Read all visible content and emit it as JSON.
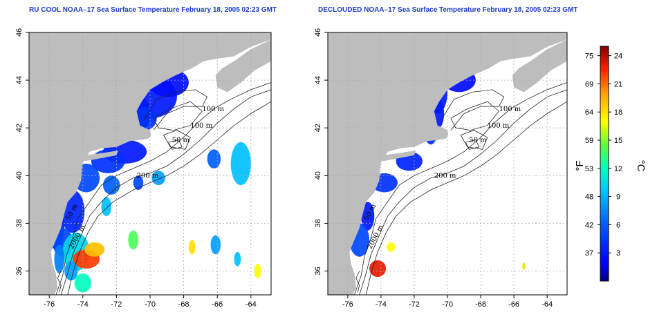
{
  "panels": [
    {
      "title": "RU COOL NOAA–17 Sea Surface Temperature February 18, 2005 02:23 GMT",
      "mode": "full"
    },
    {
      "title": "DECLOUDED NOAA–17 Sea Surface Temperature February 18, 2005 02:23 GMT",
      "mode": "declouded"
    }
  ],
  "axes": {
    "x_range": [
      -77.2,
      -62.8
    ],
    "y_range": [
      35,
      46
    ],
    "x_ticks": [
      "-76",
      "-74",
      "-72",
      "-70",
      "-68",
      "-66",
      "-64"
    ],
    "x_tick_values": [
      -76,
      -74,
      -72,
      -70,
      -68,
      -66,
      -64
    ],
    "y_ticks": [
      "36",
      "38",
      "40",
      "42",
      "44",
      "46"
    ],
    "y_tick_values": [
      36,
      38,
      40,
      42,
      44,
      46
    ],
    "grid": "dotted gray at each tick"
  },
  "contour_labels": [
    "100 m",
    "100 m",
    "50 m",
    "200 m",
    "50 m",
    "2000 m"
  ],
  "colorbar": {
    "fahrenheit_ticks": [
      "75",
      "69",
      "64",
      "59",
      "53",
      "48",
      "42",
      "37"
    ],
    "celsius_ticks": [
      "24",
      "21",
      "18",
      "15",
      "12",
      "9",
      "6",
      "3"
    ],
    "fahrenheit_unit": "°F",
    "celsius_unit": "°C",
    "range_celsius": [
      0,
      25
    ],
    "colors": [
      "#000080",
      "#0000ff",
      "#0060ff",
      "#00c0ff",
      "#00ffc0",
      "#60ff40",
      "#ffff00",
      "#ffa000",
      "#ff2000",
      "#800000"
    ]
  },
  "colors": {
    "land": "#bdbdbd",
    "title": "#1a3ac8",
    "grid": "#aaaaaa"
  }
}
